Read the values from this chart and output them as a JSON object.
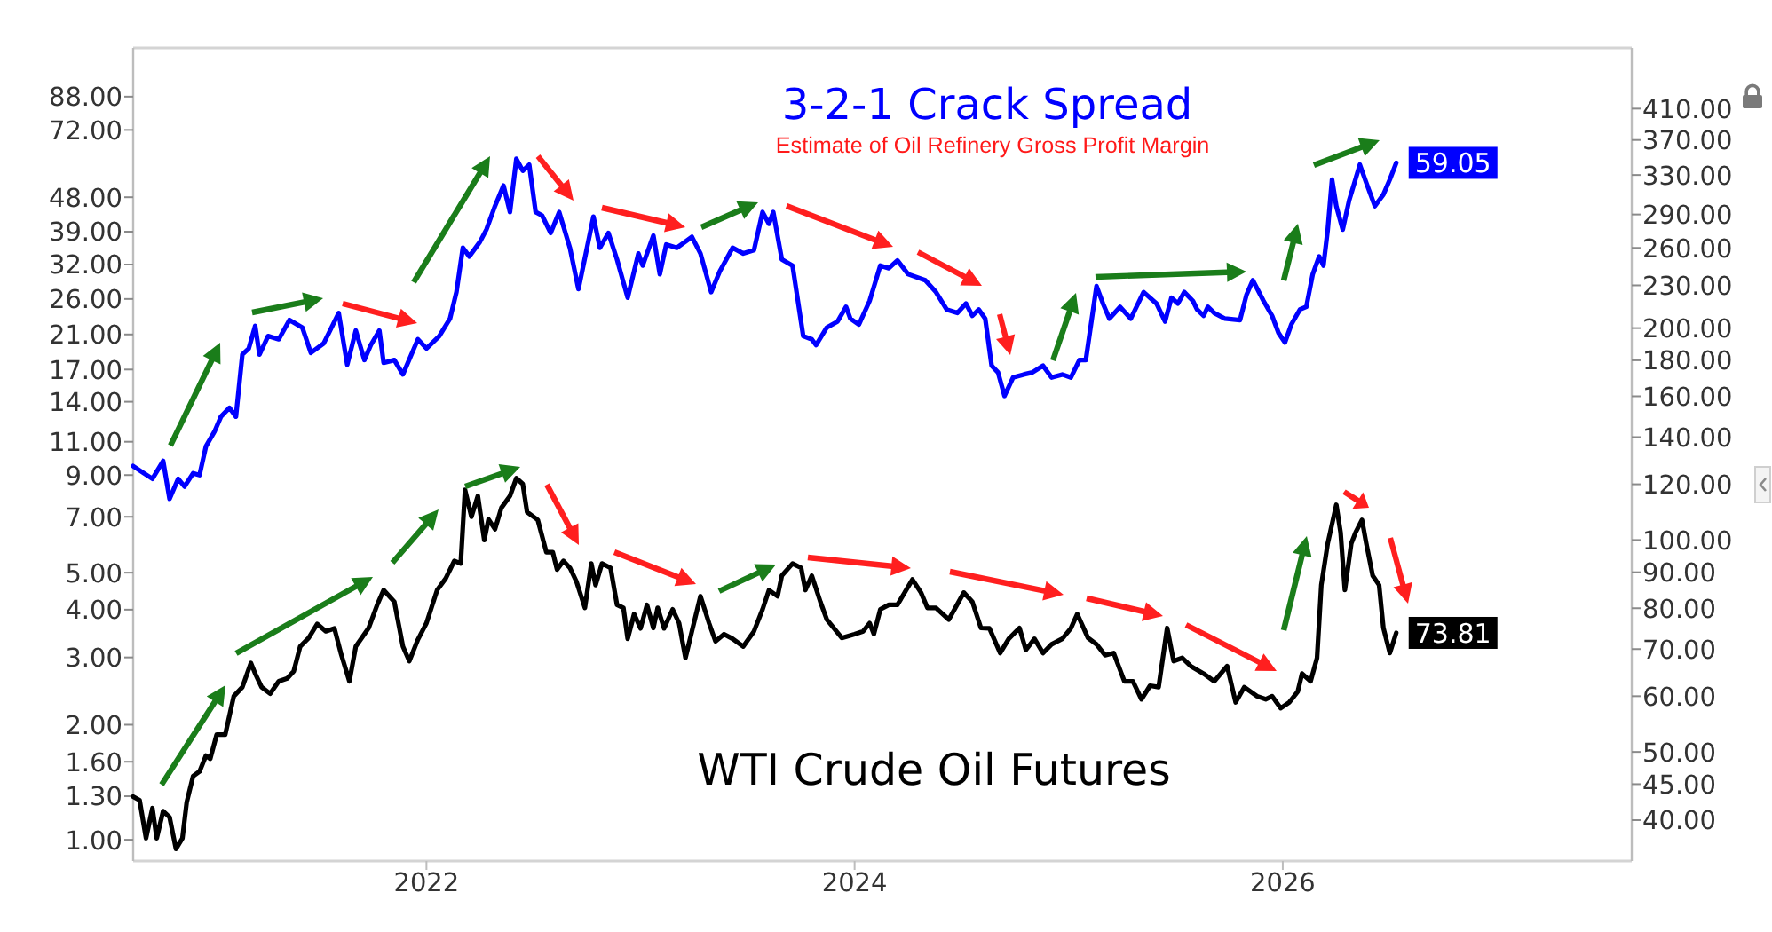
{
  "chart_data": [
    {
      "type": "line",
      "subtitle": "Estimate of Oil Refinery Gross Profit Margin",
      "log": "y",
      "xlim": [
        2020.63,
        2027.63
      ],
      "xticks": [
        2022,
        2024,
        2026
      ],
      "ylim": [
        0.88,
        118
      ],
      "yticks": [
        {
          "value": 1,
          "label": "1.00"
        },
        {
          "value": 1.3,
          "label": "1.30"
        },
        {
          "value": 1.6,
          "label": "1.60"
        },
        {
          "value": 2,
          "label": "2.00"
        },
        {
          "value": 3,
          "label": "3.00"
        },
        {
          "value": 4,
          "label": "4.00"
        },
        {
          "value": 5,
          "label": "5.00"
        },
        {
          "value": 7,
          "label": "7.00"
        },
        {
          "value": 9,
          "label": "9.00"
        },
        {
          "value": 11,
          "label": "11.00"
        },
        {
          "value": 14,
          "label": "14.00"
        },
        {
          "value": 17,
          "label": "17.00"
        },
        {
          "value": 21,
          "label": "21.00"
        },
        {
          "value": 26,
          "label": "26.00"
        },
        {
          "value": 32,
          "label": "32.00"
        },
        {
          "value": 39,
          "label": "39.00"
        },
        {
          "value": 48,
          "label": "48.00"
        },
        {
          "value": 72,
          "label": "72.00"
        },
        {
          "value": 88,
          "label": "88.00"
        }
      ],
      "series": [
        {
          "name": "3-2-1 Crack Spread",
          "color": "#0000ff",
          "x": [
            2020.63,
            2020.68,
            2020.72,
            2020.77,
            2020.8,
            2020.84,
            2020.87,
            2020.91,
            2020.94,
            2020.97,
            2021.01,
            2021.04,
            2021.08,
            2021.11,
            2021.14,
            2021.17,
            2021.2,
            2021.22,
            2021.26,
            2021.31,
            2021.36,
            2021.42,
            2021.46,
            2021.52,
            2021.59,
            2021.63,
            2021.67,
            2021.71,
            2021.74,
            2021.78,
            2021.8,
            2021.85,
            2021.89,
            2021.96,
            2022.0,
            2022.06,
            2022.11,
            2022.14,
            2022.17,
            2022.2,
            2022.25,
            2022.28,
            2022.32,
            2022.36,
            2022.39,
            2022.42,
            2022.45,
            2022.48,
            2022.51,
            2022.54,
            2022.58,
            2022.62,
            2022.67,
            2022.71,
            2022.75,
            2022.78,
            2022.81,
            2022.85,
            2022.89,
            2022.94,
            2022.99,
            2023.01,
            2023.06,
            2023.09,
            2023.12,
            2023.17,
            2023.24,
            2023.28,
            2023.33,
            2023.37,
            2023.43,
            2023.48,
            2023.53,
            2023.57,
            2023.6,
            2023.62,
            2023.66,
            2023.71,
            2023.76,
            2023.8,
            2023.82,
            2023.87,
            2023.92,
            2023.96,
            2023.98,
            2024.02,
            2024.07,
            2024.12,
            2024.16,
            2024.2,
            2024.25,
            2024.33,
            2024.38,
            2024.43,
            2024.48,
            2024.52,
            2024.55,
            2024.58,
            2024.61,
            2024.64,
            2024.67,
            2024.7,
            2024.74,
            2024.79,
            2024.83,
            2024.88,
            2024.92,
            2024.97,
            2025.01,
            2025.05,
            2025.08,
            2025.13,
            2025.16,
            2025.19,
            2025.24,
            2025.29,
            2025.35,
            2025.41,
            2025.45,
            2025.48,
            2025.51,
            2025.54,
            2025.58,
            2025.6,
            2025.63,
            2025.65,
            2025.68,
            2025.73,
            2025.8,
            2025.83,
            2025.86,
            2025.91,
            2025.95,
            2025.98,
            2026.01,
            2026.04,
            2026.08,
            2026.11,
            2026.14,
            2026.17,
            2026.19,
            2026.21,
            2026.23,
            2026.25,
            2026.28,
            2026.31,
            2026.36,
            2026.39,
            2026.43,
            2026.47,
            2026.5,
            2026.53
          ],
          "values": [
            9.5,
            9.1,
            8.8,
            9.8,
            7.8,
            8.8,
            8.4,
            9.1,
            9.0,
            10.7,
            11.7,
            12.8,
            13.5,
            12.8,
            18.6,
            19.3,
            22.1,
            18.6,
            20.8,
            20.4,
            22.9,
            21.9,
            18.8,
            19.9,
            23.9,
            17.5,
            21.5,
            18.0,
            19.7,
            21.5,
            17.7,
            18.0,
            16.5,
            20.4,
            19.3,
            20.8,
            23.1,
            27.1,
            35.4,
            33.6,
            36.7,
            39.5,
            45.5,
            51.5,
            43.9,
            60.5,
            56.3,
            58.4,
            43.9,
            43.0,
            38.7,
            43.9,
            35.4,
            27.6,
            35.4,
            42.7,
            35.4,
            38.7,
            33.0,
            26.2,
            34.2,
            31.8,
            38.1,
            30.2,
            36.1,
            35.4,
            37.8,
            34.2,
            27.1,
            30.7,
            35.4,
            34.2,
            34.9,
            43.9,
            40.9,
            43.9,
            33.0,
            31.8,
            20.8,
            20.4,
            19.7,
            21.9,
            22.7,
            24.8,
            23.1,
            22.3,
            25.7,
            31.8,
            31.3,
            32.8,
            30.2,
            29.1,
            27.1,
            24.4,
            23.9,
            25.3,
            23.5,
            24.4,
            23.1,
            17.4,
            16.7,
            14.5,
            16.2,
            16.5,
            16.7,
            17.4,
            16.2,
            16.5,
            16.2,
            18.0,
            18.0,
            28.1,
            25.3,
            23.1,
            24.8,
            23.1,
            27.1,
            25.3,
            22.7,
            26.2,
            25.3,
            27.1,
            25.7,
            24.4,
            23.5,
            24.8,
            23.9,
            23.1,
            22.9,
            26.6,
            29.1,
            25.7,
            23.5,
            21.2,
            20.0,
            22.3,
            24.4,
            24.8,
            30.2,
            33.6,
            31.8,
            39.5,
            53.4,
            45.5,
            39.5,
            47.1,
            58.4,
            52.4,
            45.5,
            48.8,
            53.4,
            59.05
          ],
          "value_labels": [
            null,
            null,
            null,
            null,
            null,
            null,
            null,
            null,
            null,
            null,
            null,
            null,
            null,
            null,
            null,
            null,
            null,
            null,
            null,
            null,
            null,
            null,
            null,
            null,
            null,
            null,
            null,
            null,
            null,
            null,
            null,
            null,
            null,
            null,
            null,
            null,
            null,
            null,
            null,
            null,
            null,
            null,
            null,
            null,
            null,
            null,
            null,
            null,
            null,
            null,
            null,
            null,
            null,
            null,
            null,
            null,
            null,
            null,
            null,
            null,
            null,
            null,
            null,
            null,
            null,
            null,
            null,
            null,
            null,
            null,
            null,
            null,
            null,
            null,
            null,
            null,
            null,
            null,
            null,
            null,
            null,
            null,
            null,
            null,
            null,
            null,
            null,
            null,
            null,
            null,
            null,
            null,
            null,
            null,
            null,
            null,
            null,
            null,
            null,
            null,
            null,
            null,
            null,
            null,
            null,
            null,
            null,
            null,
            null,
            null,
            null,
            null,
            null,
            null,
            null,
            null,
            null,
            null,
            null,
            null,
            null,
            null,
            null,
            null,
            null,
            null,
            null,
            null,
            null,
            null,
            null,
            null,
            null,
            null,
            null,
            null,
            null,
            null,
            null,
            null,
            null,
            null,
            null,
            null,
            null,
            null,
            null,
            null,
            null,
            null,
            null,
            "59.05"
          ]
        }
      ]
    },
    {
      "type": "line",
      "log": "y2",
      "tick_labels": "y",
      "xlim": [
        2020.63,
        2027.63
      ],
      "y2lim": [
        35,
        500
      ],
      "y2ticks": [
        {
          "value": 40,
          "label": "40.00"
        },
        {
          "value": 45,
          "label": "45.00"
        },
        {
          "value": 50,
          "label": "50.00"
        },
        {
          "value": 60,
          "label": "60.00"
        },
        {
          "value": 70,
          "label": "70.00"
        },
        {
          "value": 80,
          "label": "80.00"
        },
        {
          "value": 90,
          "label": "90.00"
        },
        {
          "value": 100,
          "label": "100.00"
        },
        {
          "value": 120,
          "label": "120.00"
        },
        {
          "value": 140,
          "label": "140.00"
        },
        {
          "value": 160,
          "label": "160.00"
        },
        {
          "value": 180,
          "label": "180.00"
        },
        {
          "value": 200,
          "label": "200.00"
        },
        {
          "value": 230,
          "label": "230.00"
        },
        {
          "value": 260,
          "label": "260.00"
        },
        {
          "value": 290,
          "label": "290.00"
        },
        {
          "value": 330,
          "label": "330.00"
        },
        {
          "value": 370,
          "label": "370.00"
        },
        {
          "value": 410,
          "label": "410.00"
        }
      ],
      "series": [
        {
          "name": "WTI Crude Oil Futures",
          "color": "#000000",
          "axis": "y2",
          "x": [
            2020.63,
            2020.66,
            2020.69,
            2020.72,
            2020.74,
            2020.77,
            2020.8,
            2020.83,
            2020.86,
            2020.88,
            2020.91,
            2020.94,
            2020.97,
            2020.99,
            2021.02,
            2021.06,
            2021.1,
            2021.14,
            2021.18,
            2021.2,
            2021.23,
            2021.27,
            2021.31,
            2021.35,
            2021.38,
            2021.41,
            2021.45,
            2021.49,
            2021.53,
            2021.57,
            2021.6,
            2021.64,
            2021.67,
            2021.73,
            2021.77,
            2021.8,
            2021.85,
            2021.89,
            2021.92,
            2021.96,
            2022.0,
            2022.05,
            2022.09,
            2022.13,
            2022.16,
            2022.18,
            2022.21,
            2022.24,
            2022.27,
            2022.29,
            2022.32,
            2022.35,
            2022.39,
            2022.42,
            2022.45,
            2022.47,
            2022.52,
            2022.56,
            2022.59,
            2022.61,
            2022.64,
            2022.67,
            2022.7,
            2022.74,
            2022.77,
            2022.79,
            2022.82,
            2022.86,
            2022.89,
            2022.92,
            2022.94,
            2022.97,
            2023.0,
            2023.03,
            2023.06,
            2023.08,
            2023.11,
            2023.15,
            2023.18,
            2023.21,
            2023.24,
            2023.28,
            2023.32,
            2023.35,
            2023.39,
            2023.43,
            2023.48,
            2023.53,
            2023.57,
            2023.6,
            2023.64,
            2023.66,
            2023.71,
            2023.75,
            2023.77,
            2023.8,
            2023.84,
            2023.87,
            2023.94,
            2024.0,
            2024.04,
            2024.07,
            2024.09,
            2024.12,
            2024.16,
            2024.2,
            2024.27,
            2024.31,
            2024.34,
            2024.38,
            2024.44,
            2024.51,
            2024.55,
            2024.59,
            2024.63,
            2024.68,
            2024.72,
            2024.77,
            2024.8,
            2024.84,
            2024.88,
            2024.92,
            2024.97,
            2025.01,
            2025.04,
            2025.09,
            2025.13,
            2025.17,
            2025.21,
            2025.26,
            2025.3,
            2025.34,
            2025.38,
            2025.42,
            2025.46,
            2025.49,
            2025.53,
            2025.57,
            2025.63,
            2025.68,
            2025.74,
            2025.78,
            2025.82,
            2025.88,
            2025.92,
            2025.95,
            2025.99,
            2026.03,
            2026.07,
            2026.09,
            2026.13,
            2026.16,
            2026.18,
            2026.21,
            2026.25,
            2026.27,
            2026.29,
            2026.32,
            2026.34,
            2026.37,
            2026.39,
            2026.42,
            2026.45,
            2026.47,
            2026.5,
            2026.53
          ],
          "values": [
            43.2,
            42.7,
            37.7,
            41.6,
            37.7,
            41.2,
            40.4,
            36.4,
            37.7,
            42.4,
            46.2,
            46.9,
            49.4,
            48.9,
            52.9,
            52.9,
            60.0,
            61.8,
            66.9,
            64.6,
            61.8,
            60.5,
            63.0,
            63.6,
            65.1,
            70.6,
            72.6,
            76.0,
            74.2,
            74.9,
            69.1,
            63.0,
            70.6,
            75.0,
            80.9,
            84.9,
            81.7,
            70.6,
            67.3,
            72.2,
            76.2,
            84.9,
            88.2,
            93.4,
            92.6,
            117.8,
            107.9,
            115.5,
            100.0,
            107.0,
            103.6,
            111.1,
            115.5,
            122.4,
            120.1,
            109.6,
            106.8,
            96.1,
            96.1,
            90.8,
            93.4,
            91.3,
            87.4,
            80.1,
            92.6,
            86.3,
            92.6,
            91.3,
            80.9,
            80.1,
            72.4,
            78.5,
            74.9,
            80.9,
            75.0,
            80.1,
            74.9,
            79.7,
            76.2,
            68.0,
            74.2,
            83.2,
            76.2,
            71.8,
            73.5,
            72.4,
            70.6,
            74.2,
            79.7,
            84.9,
            83.2,
            89.0,
            92.6,
            91.3,
            84.9,
            89.0,
            81.7,
            77.1,
            72.6,
            73.5,
            74.2,
            76.2,
            73.5,
            79.7,
            80.9,
            80.9,
            87.9,
            84.2,
            80.1,
            80.1,
            77.1,
            84.2,
            81.7,
            75.0,
            74.9,
            69.1,
            72.4,
            75.0,
            69.8,
            72.4,
            69.1,
            71.1,
            72.4,
            74.9,
            78.5,
            72.6,
            71.1,
            68.6,
            69.1,
            63.0,
            63.0,
            59.4,
            62.1,
            61.8,
            75.0,
            67.3,
            68.0,
            66.2,
            64.6,
            63.0,
            66.2,
            58.8,
            61.8,
            60.0,
            59.4,
            60.0,
            57.7,
            58.8,
            60.9,
            64.6,
            63.0,
            68.0,
            86.3,
            98.9,
            112.2,
            102.5,
            84.9,
            98.9,
            102.5,
            106.8,
            98.9,
            89.0,
            86.3,
            75.0,
            69.1,
            73.81
          ],
          "value_labels": [
            null,
            null,
            null,
            null,
            null,
            null,
            null,
            null,
            null,
            null,
            null,
            null,
            null,
            null,
            null,
            null,
            null,
            null,
            null,
            null,
            null,
            null,
            null,
            null,
            null,
            null,
            null,
            null,
            null,
            null,
            null,
            null,
            null,
            null,
            null,
            null,
            null,
            null,
            null,
            null,
            null,
            null,
            null,
            null,
            null,
            null,
            null,
            null,
            null,
            null,
            null,
            null,
            null,
            null,
            null,
            null,
            null,
            null,
            null,
            null,
            null,
            null,
            null,
            null,
            null,
            null,
            null,
            null,
            null,
            null,
            null,
            null,
            null,
            null,
            null,
            null,
            null,
            null,
            null,
            null,
            null,
            null,
            null,
            null,
            null,
            null,
            null,
            null,
            null,
            null,
            null,
            null,
            null,
            null,
            null,
            null,
            null,
            null,
            null,
            null,
            null,
            null,
            null,
            null,
            null,
            null,
            null,
            null,
            null,
            null,
            null,
            null,
            null,
            null,
            null,
            null,
            null,
            null,
            null,
            null,
            null,
            null,
            null,
            null,
            null,
            null,
            null,
            null,
            null,
            null,
            null,
            null,
            null,
            null,
            null,
            null,
            null,
            null,
            null,
            null,
            null,
            null,
            null,
            null,
            null,
            null,
            null,
            null,
            null,
            null,
            null,
            null,
            null,
            null,
            null,
            null,
            null,
            null,
            null,
            null,
            null,
            null,
            null,
            null,
            null,
            "73.81"
          ]
        }
      ]
    }
  ]
}
